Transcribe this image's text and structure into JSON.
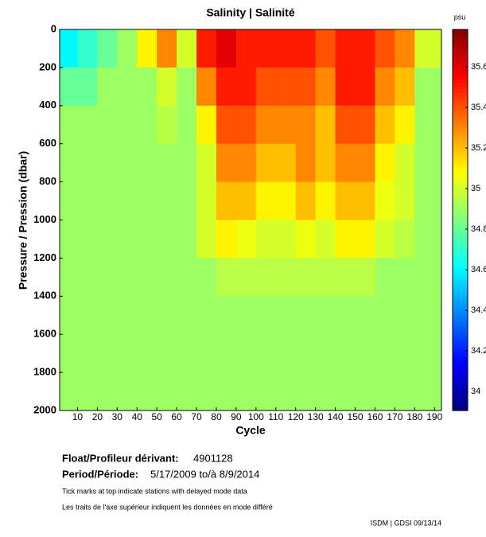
{
  "chart_data": {
    "type": "heatmap",
    "title": "Salinity | Salinité",
    "x_label": "Cycle",
    "y_label": "Pressure / Pression (dbar)",
    "xlim": [
      1,
      193.5
    ],
    "xticks": [
      10,
      20,
      30,
      40,
      50,
      60,
      70,
      80,
      90,
      100,
      110,
      120,
      130,
      140,
      150,
      160,
      170,
      180,
      190
    ],
    "ylim": [
      0,
      2000
    ],
    "yticks": [
      0,
      200,
      400,
      600,
      800,
      1000,
      1200,
      1400,
      1600,
      1800,
      2000
    ],
    "y_inverted": true,
    "xbins": [
      1,
      10,
      20,
      30,
      40,
      50,
      60,
      70,
      80,
      90,
      100,
      110,
      120,
      130,
      140,
      150,
      160,
      170,
      180,
      190,
      193.5
    ],
    "ybins": [
      0,
      200,
      400,
      600,
      800,
      1000,
      1200,
      1400,
      1600,
      1800,
      2000
    ],
    "values": [
      [
        34.6,
        34.7,
        34.8,
        34.9,
        35.1,
        35.3,
        35.0,
        35.5,
        35.6,
        35.5,
        35.5,
        35.5,
        35.5,
        35.4,
        35.5,
        35.5,
        35.4,
        35.3,
        35.0,
        35.0
      ],
      [
        34.8,
        34.8,
        34.9,
        34.9,
        34.9,
        35.0,
        34.9,
        35.3,
        35.5,
        35.5,
        35.4,
        35.4,
        35.4,
        35.3,
        35.5,
        35.5,
        35.3,
        35.2,
        34.9,
        34.9
      ],
      [
        34.9,
        34.9,
        34.9,
        34.9,
        34.9,
        34.95,
        34.9,
        35.1,
        35.4,
        35.4,
        35.3,
        35.3,
        35.3,
        35.2,
        35.4,
        35.4,
        35.2,
        35.1,
        34.9,
        34.9
      ],
      [
        34.9,
        34.9,
        34.9,
        34.9,
        34.9,
        34.9,
        34.9,
        35.0,
        35.3,
        35.3,
        35.2,
        35.2,
        35.3,
        35.2,
        35.3,
        35.3,
        35.1,
        35.0,
        34.9,
        34.9
      ],
      [
        34.9,
        34.9,
        34.9,
        34.9,
        34.9,
        34.9,
        34.9,
        35.0,
        35.2,
        35.2,
        35.1,
        35.1,
        35.2,
        35.1,
        35.2,
        35.2,
        35.05,
        35.0,
        34.9,
        34.9
      ],
      [
        34.9,
        34.9,
        34.9,
        34.9,
        34.9,
        34.9,
        34.9,
        35.0,
        35.1,
        35.05,
        35.0,
        35.0,
        35.05,
        35.0,
        35.1,
        35.1,
        35.0,
        34.95,
        34.9,
        34.9
      ],
      [
        34.9,
        34.9,
        34.9,
        34.9,
        34.9,
        34.9,
        34.9,
        34.9,
        34.95,
        34.95,
        34.95,
        34.95,
        34.95,
        34.95,
        34.95,
        34.95,
        34.9,
        34.9,
        34.9,
        34.9
      ],
      [
        34.9,
        34.9,
        34.9,
        34.9,
        34.9,
        34.9,
        34.9,
        34.9,
        34.9,
        34.9,
        34.9,
        34.9,
        34.9,
        34.9,
        34.9,
        34.9,
        34.9,
        34.9,
        34.9,
        34.9
      ],
      [
        34.9,
        34.9,
        34.9,
        34.9,
        34.9,
        34.9,
        34.9,
        34.9,
        34.9,
        34.9,
        34.9,
        34.9,
        34.9,
        34.9,
        34.9,
        34.9,
        34.9,
        34.9,
        34.9,
        34.9
      ],
      [
        34.9,
        34.9,
        34.9,
        34.9,
        34.9,
        34.9,
        34.9,
        34.9,
        34.9,
        34.9,
        34.9,
        34.9,
        34.9,
        34.9,
        34.9,
        34.9,
        34.9,
        34.9,
        34.9,
        34.9
      ]
    ],
    "colormap": "jet",
    "clim": [
      33.906,
      35.784
    ],
    "cticks": [
      34,
      34.2,
      34.4,
      34.6,
      34.8,
      35,
      35.2,
      35.4,
      35.6
    ],
    "colorbar_label": "psu",
    "float_label": "Float/Profileur dérivant:",
    "float_id": "4901128",
    "period_label": "Period/Période:",
    "period": "5/17/2009  to/à  8/9/2014",
    "note_en": "Tick marks at top indicate stations with delayed mode data",
    "note_fr": "Les traits de l'axe supérieur indiquent les données en mode différé",
    "credit": "ISDM | GDSI  09/13/14"
  }
}
